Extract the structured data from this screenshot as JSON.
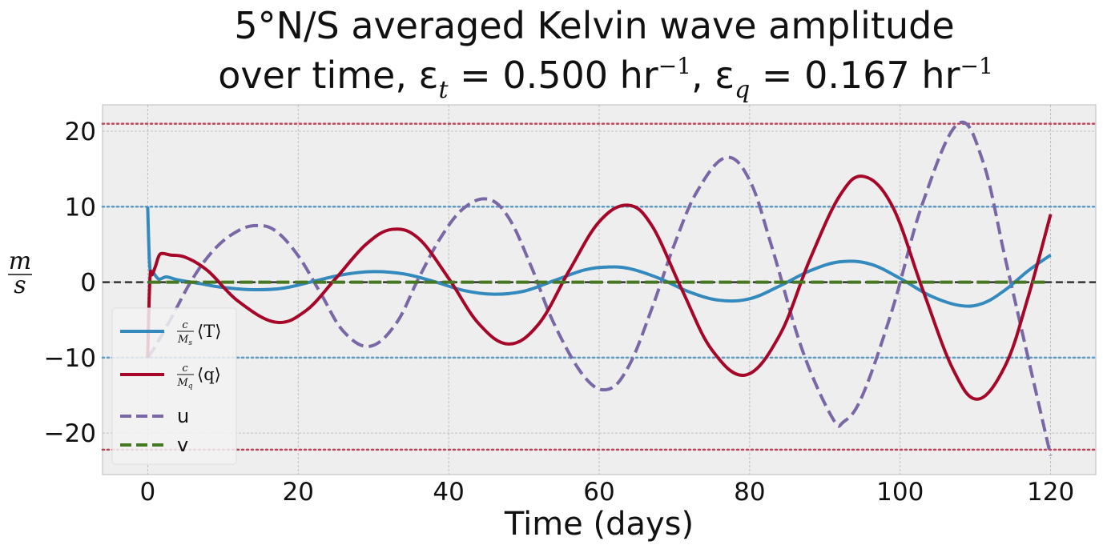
{
  "chart_data": {
    "type": "line",
    "title_line1": "5°N/S averaged Kelvin wave amplitude",
    "title_line2_prefix": "over time, ε",
    "title_eps_t_sub": "t",
    "title_eps_t_value": " = 0.500 hr",
    "title_exp": "−1",
    "title_sep": ",  ε",
    "title_eps_q_sub": "q",
    "title_eps_q_value": " = 0.167 hr",
    "xlabel": "Time (days)",
    "ylabel_num": "m",
    "ylabel_den": "s",
    "xlim": [
      -6,
      126
    ],
    "ylim": [
      -25.5,
      23.5
    ],
    "xticks": [
      0,
      20,
      40,
      60,
      80,
      100,
      120
    ],
    "yticks": [
      -20,
      -10,
      0,
      10,
      20
    ],
    "ytick_labels": [
      "−20",
      "−10",
      "0",
      "10",
      "20"
    ],
    "xtick_labels": [
      "0",
      "20",
      "40",
      "60",
      "80",
      "100",
      "120"
    ],
    "grid": true,
    "legend_position": "lower-left",
    "reference_lines": [
      {
        "y": 21,
        "color": "#c0455a",
        "style": "dotted"
      },
      {
        "y": -22.2,
        "color": "#c0455a",
        "style": "dotted"
      },
      {
        "y": 10,
        "color": "#5b9bc4",
        "style": "dotted"
      },
      {
        "y": -10,
        "color": "#5b9bc4",
        "style": "dotted"
      },
      {
        "y": 0,
        "color": "#333333",
        "style": "dashed"
      }
    ],
    "series": [
      {
        "name": "T",
        "legend_frac": "c/Ms",
        "legend_bracket": "⟨T⟩",
        "color": "#348abd",
        "style": "solid",
        "x": [
          0,
          0.3,
          0.8,
          1.5,
          2.5,
          4,
          7,
          10,
          14,
          18,
          22,
          26,
          30,
          34,
          38,
          42,
          46,
          50,
          54,
          58,
          61,
          64,
          68,
          72,
          76,
          80,
          84,
          88,
          92,
          96,
          100,
          104,
          108,
          111,
          114,
          117,
          120
        ],
        "y": [
          10,
          1.8,
          1.2,
          0.4,
          0.7,
          0.3,
          -0.2,
          -0.7,
          -1.0,
          -0.8,
          0.1,
          1.0,
          1.4,
          1.1,
          0.1,
          -1.1,
          -1.6,
          -1.2,
          0.2,
          1.6,
          2.0,
          1.8,
          0.5,
          -1.3,
          -2.4,
          -2.2,
          -0.5,
          1.5,
          2.7,
          2.4,
          0.5,
          -1.8,
          -3.1,
          -2.8,
          -1.0,
          1.5,
          3.6
        ]
      },
      {
        "name": "q",
        "legend_frac": "c/Mq",
        "legend_bracket": "⟨q⟩",
        "color": "#a60628",
        "style": "solid",
        "x": [
          0,
          0.3,
          0.6,
          1,
          1.5,
          2,
          3,
          5,
          8,
          12,
          17,
          21,
          25,
          29,
          32.5,
          36,
          40,
          44,
          48,
          52,
          56,
          60,
          63.8,
          67,
          71,
          75,
          79.5,
          84,
          88,
          92,
          95.2,
          99,
          103,
          107,
          110.3,
          114,
          117,
          120
        ],
        "y": [
          -10,
          0.5,
          1,
          2,
          3.5,
          3.8,
          3.6,
          3.3,
          1.5,
          -2.5,
          -5.3,
          -3.8,
          0.5,
          5,
          7,
          5.8,
          0.5,
          -5.5,
          -8.2,
          -5.5,
          1.5,
          8,
          10.2,
          7.5,
          -1,
          -9,
          -12.3,
          -7,
          3,
          11.5,
          14,
          10,
          -1,
          -11.5,
          -15.5,
          -11,
          -2,
          9
        ]
      },
      {
        "name": "u",
        "legend_frac": "",
        "legend_bracket": "",
        "color": "#7a68a6",
        "style": "dashed",
        "x": [
          0,
          1,
          3,
          6,
          9,
          12,
          14.5,
          17,
          20,
          23,
          26,
          29.5,
          33,
          36,
          39,
          42,
          45.2,
          48,
          51,
          54,
          58,
          61.2,
          64,
          67,
          70,
          73,
          76.8,
          80,
          83,
          87,
          91,
          92.5,
          95,
          99,
          103,
          107.7,
          111,
          114,
          117,
          120
        ],
        "y": [
          -10,
          -8.5,
          -5,
          0.5,
          4.5,
          6.8,
          7.5,
          6.8,
          3.5,
          -1.5,
          -6.5,
          -8.5,
          -5.5,
          0.5,
          6,
          9.8,
          11,
          8.5,
          2,
          -5.5,
          -12.5,
          -14.2,
          -11,
          -3.5,
          5,
          12,
          16.5,
          13.5,
          4.5,
          -9,
          -18,
          -18.5,
          -15,
          -3.5,
          10.5,
          21,
          16,
          3,
          -10,
          -23
        ]
      },
      {
        "name": "v",
        "legend_frac": "",
        "legend_bracket": "",
        "color": "#467821",
        "style": "dashed",
        "x": [
          0,
          120
        ],
        "y": [
          0,
          0
        ]
      }
    ]
  }
}
